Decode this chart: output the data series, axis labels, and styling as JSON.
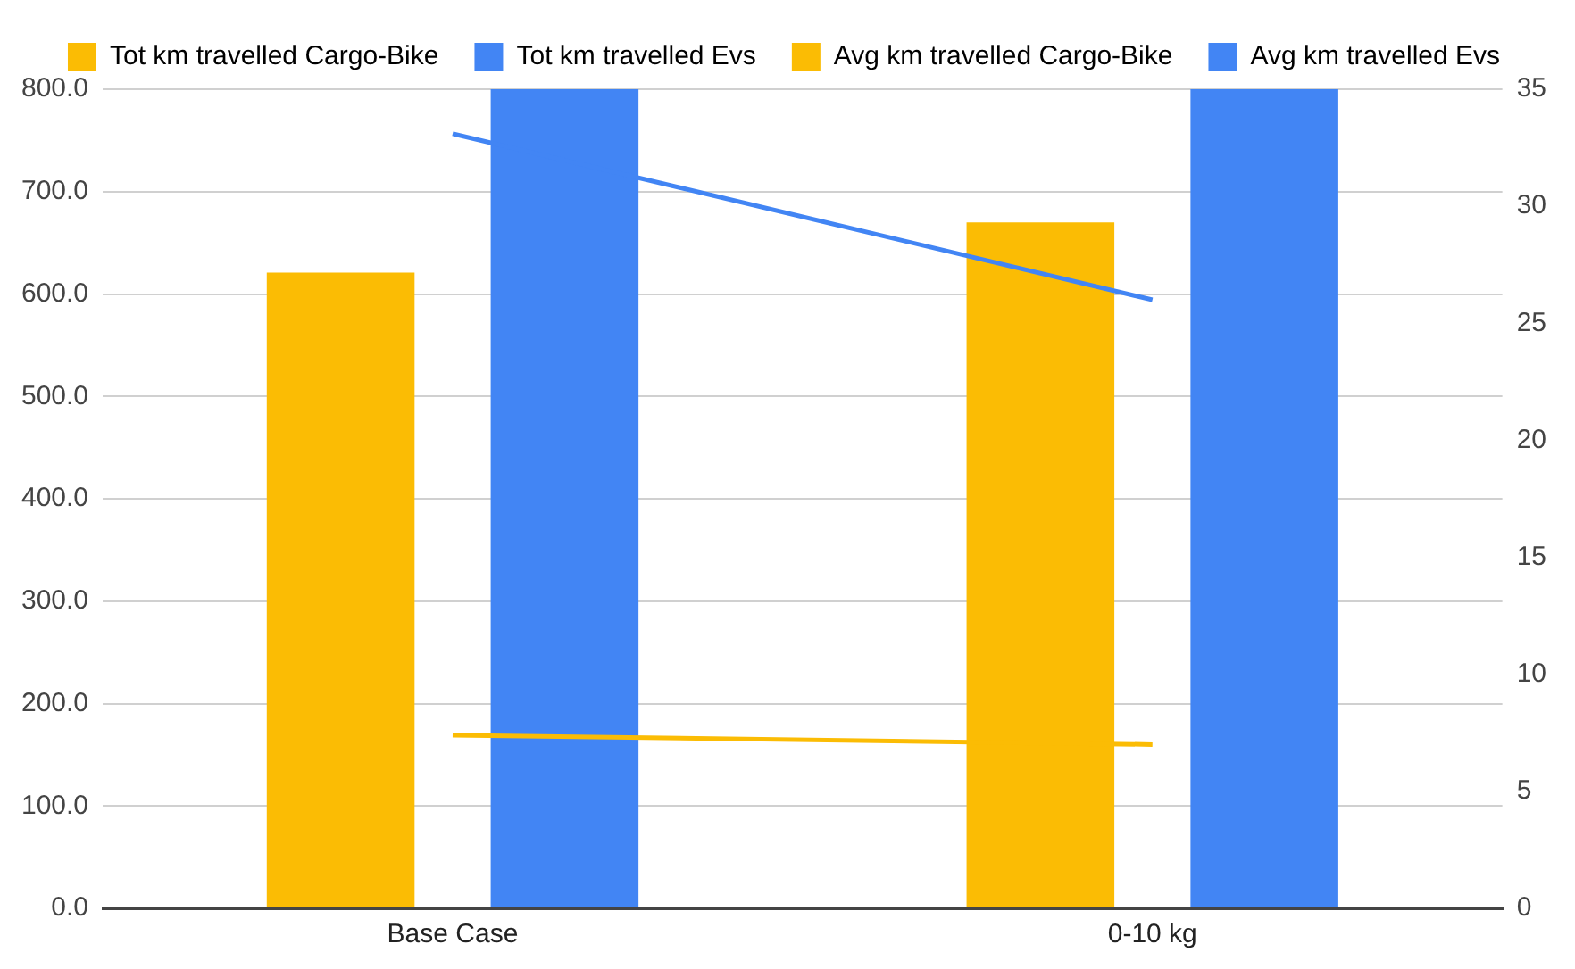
{
  "chart_data": {
    "type": "bar",
    "categories": [
      "Base Case",
      "0-10 kg"
    ],
    "series": [
      {
        "name": "Tot km travelled Cargo-Bike",
        "color": "#fbbc04",
        "values": [
          621,
          670
        ]
      },
      {
        "name": "Tot km travelled Evs",
        "color": "#4285f4",
        "values": [
          800,
          800
        ]
      },
      {
        "name": "Avg km travelled Cargo-Bike",
        "type": "line",
        "axis": "y2",
        "color": "#fbbc04",
        "values": [
          7.4,
          7.0
        ]
      },
      {
        "name": "Avg km travelled Evs",
        "type": "line",
        "axis": "y2",
        "color": "#4285f4",
        "values": [
          33.1,
          26.0
        ]
      }
    ],
    "ylim": [
      0,
      800
    ],
    "yticks": [
      {
        "value": 0,
        "label": "0.0"
      },
      {
        "value": 100,
        "label": "100.0"
      },
      {
        "value": 200,
        "label": "200.0"
      },
      {
        "value": 300,
        "label": "300.0"
      },
      {
        "value": 400,
        "label": "400.0"
      },
      {
        "value": 500,
        "label": "500.0"
      },
      {
        "value": 600,
        "label": "600.0"
      },
      {
        "value": 700,
        "label": "700.0"
      },
      {
        "value": 800,
        "label": "800.0"
      }
    ],
    "y2lim": [
      0,
      35
    ],
    "y2ticks": [
      0,
      5,
      10,
      15,
      20,
      25,
      30,
      35
    ],
    "grid": "y",
    "legend": "top",
    "marker": "none"
  }
}
